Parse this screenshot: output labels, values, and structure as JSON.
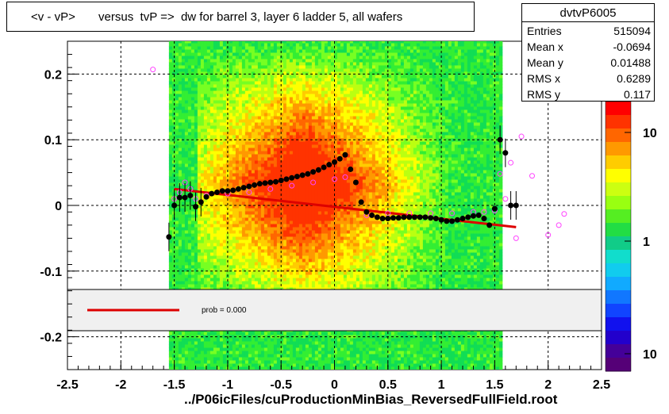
{
  "title": "<v - vP>       versus  tvP =>  dw for barrel 3, layer 6 ladder 5, all wafers",
  "stats": {
    "name": "dvtvP6005",
    "rows": [
      {
        "key": "Entries",
        "value": "515094"
      },
      {
        "key": "Mean x",
        "value": "-0.0694"
      },
      {
        "key": "Mean y",
        "value": "0.01488"
      },
      {
        "key": "RMS x",
        "value": "0.6289"
      },
      {
        "key": "RMS y",
        "value": "0.117"
      }
    ]
  },
  "footer": "../P06icFiles/cuProductionMinBias_ReversedFullField.root",
  "legend": {
    "fit_label": "prob = 0.000"
  },
  "colors": {
    "fit_line": "#dd0000",
    "profile_marker": "#000000",
    "open_marker": "#ff44ff"
  },
  "chart_data": {
    "type": "heatmap",
    "xlim": [
      -2.5,
      2.5
    ],
    "ylim": [
      -0.25,
      0.25
    ],
    "x_ticks": [
      "-2.5",
      "-2",
      "-1.5",
      "-1",
      "-0.5",
      "0",
      "0.5",
      "1",
      "1.5",
      "2",
      "2.5"
    ],
    "y_ticks": [
      "0.2",
      "0.1",
      "0",
      "-0.1",
      "-0.2"
    ],
    "grid": true,
    "color_scale": {
      "log": true,
      "labels": [
        "10",
        "1",
        "10"
      ]
    },
    "profile_filled": {
      "x": [
        -1.55,
        -1.5,
        -1.45,
        -1.4,
        -1.35,
        -1.3,
        -1.25,
        -1.2,
        -1.15,
        -1.1,
        -1.05,
        -1.0,
        -0.95,
        -0.9,
        -0.85,
        -0.8,
        -0.75,
        -0.7,
        -0.65,
        -0.6,
        -0.55,
        -0.5,
        -0.45,
        -0.4,
        -0.35,
        -0.3,
        -0.25,
        -0.2,
        -0.15,
        -0.1,
        -0.05,
        0.0,
        0.05,
        0.1,
        0.15,
        0.2,
        0.25,
        0.3,
        0.35,
        0.4,
        0.45,
        0.5,
        0.55,
        0.6,
        0.65,
        0.7,
        0.75,
        0.8,
        0.85,
        0.9,
        0.95,
        1.0,
        1.05,
        1.1,
        1.15,
        1.2,
        1.25,
        1.3,
        1.35,
        1.4,
        1.45,
        1.5,
        1.55,
        1.6,
        1.65,
        1.7
      ],
      "y": [
        -0.048,
        0.0,
        0.012,
        0.012,
        0.015,
        -0.002,
        0.005,
        0.013,
        0.018,
        0.02,
        0.022,
        0.022,
        0.023,
        0.025,
        0.027,
        0.029,
        0.031,
        0.033,
        0.034,
        0.035,
        0.036,
        0.038,
        0.04,
        0.042,
        0.044,
        0.046,
        0.048,
        0.051,
        0.054,
        0.058,
        0.062,
        0.066,
        0.071,
        0.077,
        0.055,
        0.035,
        0.005,
        -0.01,
        -0.015,
        -0.018,
        -0.02,
        -0.02,
        -0.019,
        -0.019,
        -0.018,
        -0.018,
        -0.018,
        -0.018,
        -0.018,
        -0.019,
        -0.02,
        -0.022,
        -0.024,
        -0.024,
        -0.022,
        -0.02,
        -0.018,
        -0.016,
        -0.015,
        -0.02,
        -0.03,
        -0.005,
        0.1,
        0.08,
        0.0,
        0.0
      ]
    },
    "profile_open": {
      "x": [
        -1.7,
        -1.5,
        -1.45,
        -1.4,
        -1.35,
        -1.3,
        -1.2,
        -1.0,
        -0.8,
        -0.6,
        -0.4,
        -0.2,
        0.0,
        0.1,
        0.3,
        0.5,
        0.7,
        0.9,
        1.1,
        1.3,
        1.4,
        1.5,
        1.55,
        1.6,
        1.65,
        1.7,
        1.75,
        1.85,
        2.0,
        2.1,
        2.15
      ],
      "y": [
        0.207,
        0.01,
        0.02,
        0.035,
        0.025,
        0.01,
        0.015,
        0.018,
        0.02,
        0.025,
        0.03,
        0.035,
        0.04,
        0.043,
        -0.015,
        -0.012,
        -0.012,
        -0.012,
        -0.012,
        -0.01,
        -0.01,
        -0.008,
        0.048,
        0.01,
        0.065,
        -0.05,
        0.105,
        0.045,
        -0.045,
        -0.03,
        -0.013
      ]
    },
    "fit_line": {
      "x": [
        -1.5,
        1.7
      ],
      "y": [
        0.025,
        -0.033
      ]
    }
  }
}
